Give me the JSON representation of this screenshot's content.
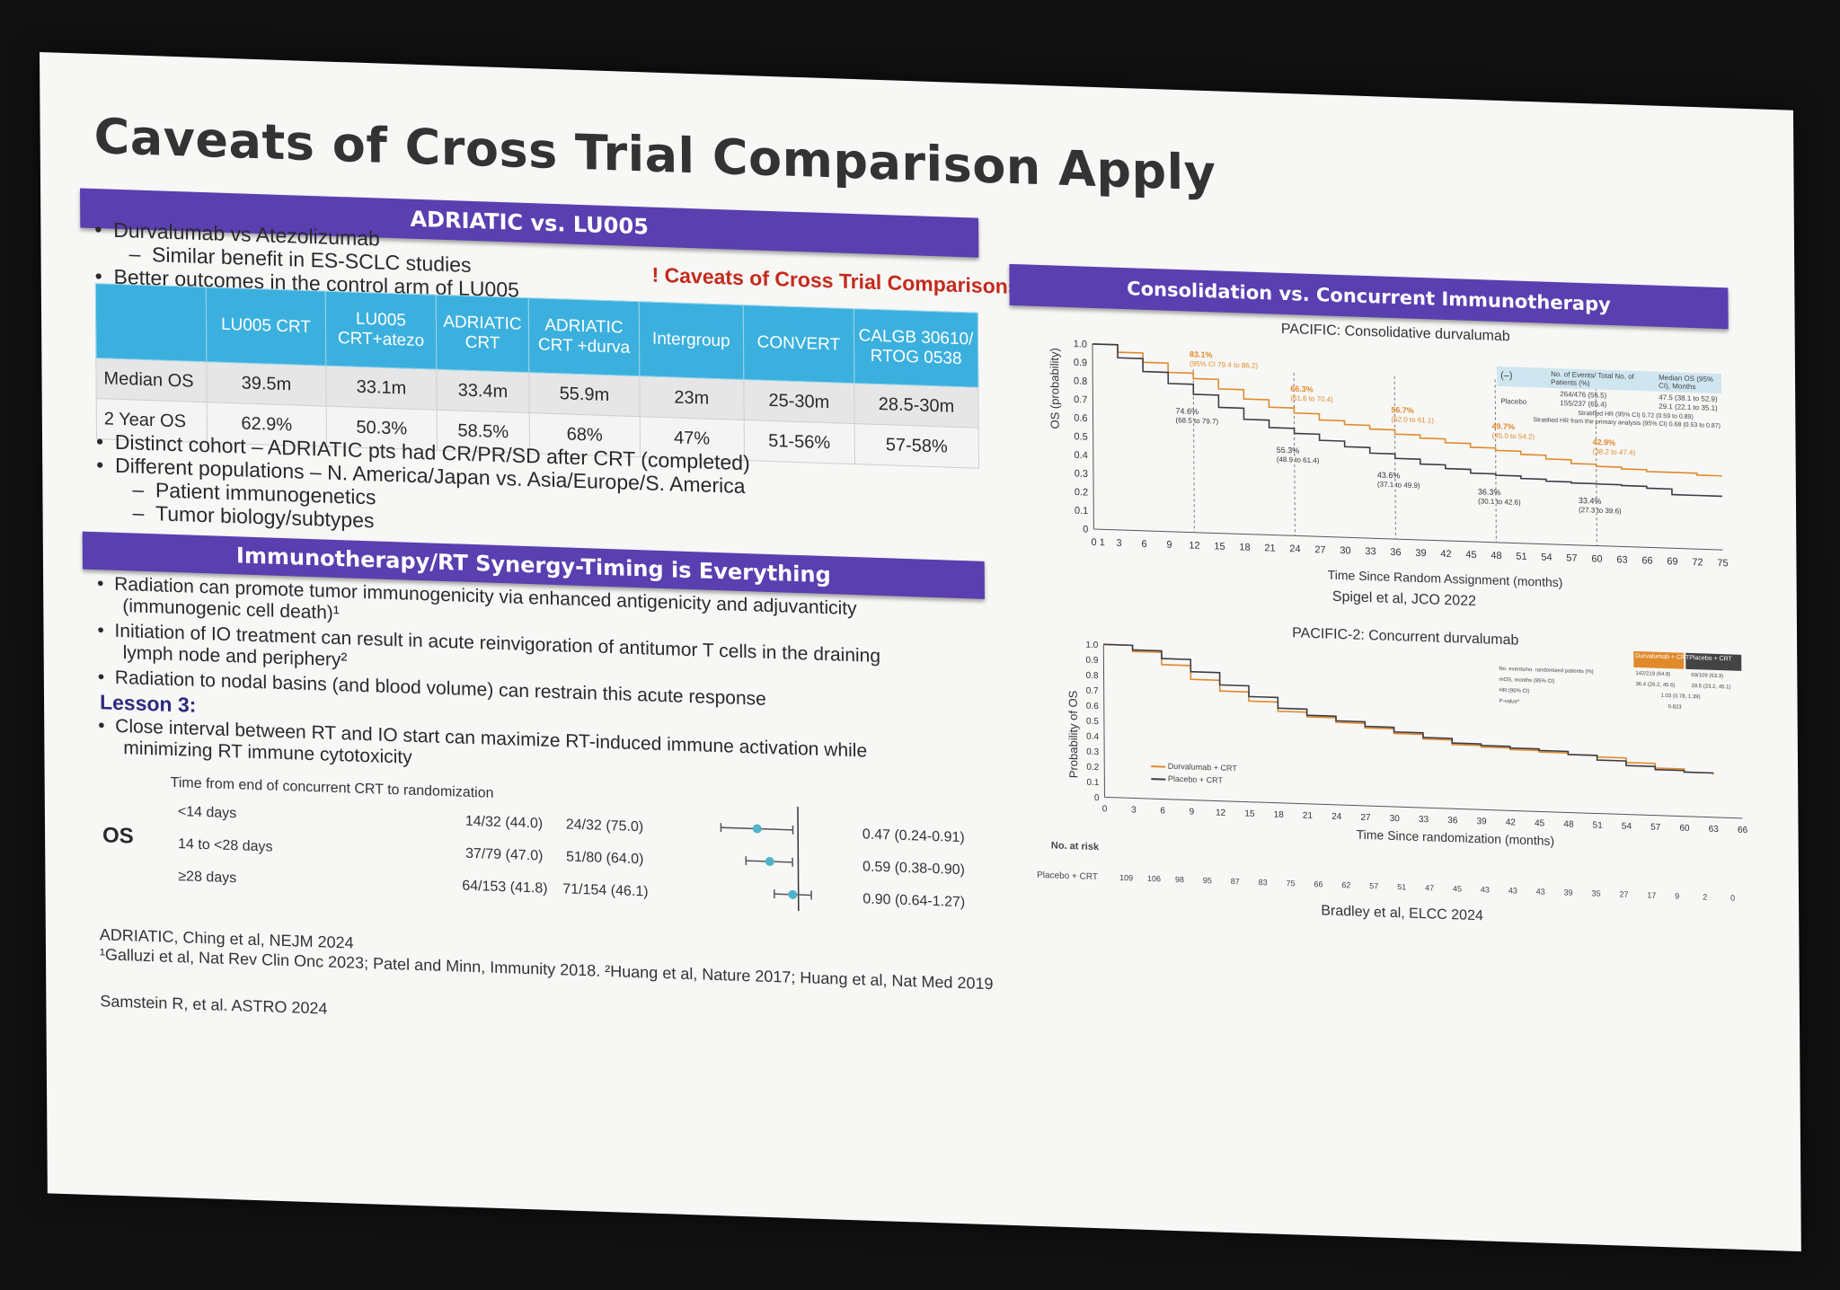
{
  "slide": {
    "title": "Caveats of Cross Trial Comparison Apply",
    "left_bar": "ADRIATIC vs. LU005",
    "bullets1": [
      "Durvalumab vs Atezolizumab",
      "Similar benefit in ES-SCLC studies",
      "Better outcomes in the control arm of LU005"
    ],
    "caveat_note": "! Caveats of Cross Trial Comparisons !",
    "table": {
      "headers": [
        "",
        "LU005 CRT",
        "LU005 CRT+atezo",
        "ADRIATIC CRT",
        "ADRIATIC CRT +durva",
        "Intergroup",
        "CONVERT",
        "CALGB 30610/ RTOG 0538"
      ],
      "rows": [
        [
          "Median OS",
          "39.5m",
          "33.1m",
          "33.4m",
          "55.9m",
          "23m",
          "25-30m",
          "28.5-30m"
        ],
        [
          "2 Year OS",
          "62.9%",
          "50.3%",
          "58.5%",
          "68%",
          "47%",
          "51-56%",
          "57-58%"
        ]
      ]
    },
    "bullets2": [
      "Distinct cohort – ADRIATIC pts had CR/PR/SD after CRT (completed)",
      "Different populations – N. America/Japan vs. Asia/Europe/S. America",
      "Patient immunogenetics",
      "Tumor biology/subtypes"
    ],
    "synergy_bar": "Immunotherapy/RT Synergy-Timing is Everything",
    "bullets3": [
      "Radiation can promote tumor immunogenicity via enhanced antigenicity and adjuvanticity",
      "(immunogenic cell death)¹",
      "Initiation of IO treatment can result in acute reinvigoration of antitumor T cells in the draining",
      "lymph node and periphery²",
      "Radiation to nodal basins (and blood volume) can restrain this acute response"
    ],
    "lesson": "Lesson 3:",
    "bullets4": [
      "Close interval between RT and IO start can maximize RT-induced immune activation while",
      "minimizing RT immune cytotoxicity"
    ],
    "forest": {
      "header": "Time from end of concurrent CRT to randomization",
      "label": "OS",
      "rows": [
        {
          "group": "<14 days",
          "a": "14/32 (44.0)",
          "b": "24/32 (75.0)",
          "hr": "0.47 (0.24-0.91)",
          "est": 0.47,
          "lo": 0.24,
          "hi": 0.91
        },
        {
          "group": "14 to <28 days",
          "a": "37/79 (47.0)",
          "b": "51/80 (64.0)",
          "hr": "0.59 (0.38-0.90)",
          "est": 0.59,
          "lo": 0.38,
          "hi": 0.9
        },
        {
          "group": "≥28 days",
          "a": "64/153 (41.8)",
          "b": "71/154 (46.1)",
          "hr": "0.90 (0.64-1.27)",
          "est": 0.9,
          "lo": 0.64,
          "hi": 1.27
        }
      ]
    },
    "refs": [
      "ADRIATIC, Ching et al, NEJM 2024",
      "¹Galluzi et al, Nat Rev Clin Onc 2023; Patel and Minn, Immunity 2018. ²Huang et al, Nature 2017; Huang et al, Nat Med 2019",
      "Samstein R,  et al.  ASTRO 2024"
    ],
    "right_bar": "Consolidation vs. Concurrent Immunotherapy",
    "pacific": {
      "subtitle": "PACIFIC: Consolidative durvalumab",
      "ylabel": "OS (probability)",
      "xlabel": "Time Since Random Assignment (months)",
      "cite": "Spigel et al, JCO 2022",
      "y_ticks": [
        "0",
        "0.1",
        "0.2",
        "0.3",
        "0.4",
        "0.5",
        "0.6",
        "0.7",
        "0.8",
        "0.9",
        "1.0"
      ],
      "x_ticks": [
        "0",
        "1",
        "3",
        "6",
        "9",
        "12",
        "15",
        "18",
        "21",
        "24",
        "27",
        "30",
        "33",
        "36",
        "39",
        "42",
        "45",
        "48",
        "51",
        "54",
        "57",
        "60",
        "63",
        "66",
        "69",
        "72",
        "75"
      ],
      "annotations_durva": [
        {
          "x": 12,
          "y": 0.831,
          "text": "83.1%",
          "sub": "(95% CI 79.4 to 86.2)"
        },
        {
          "x": 24,
          "y": 0.663,
          "text": "66.3%",
          "sub": "(61.6 to 70.4)"
        },
        {
          "x": 36,
          "y": 0.567,
          "text": "56.7%",
          "sub": "(52.0 to 61.1)"
        },
        {
          "x": 48,
          "y": 0.497,
          "text": "49.7%",
          "sub": "(45.0 to 54.2)"
        },
        {
          "x": 60,
          "y": 0.429,
          "text": "42.9%",
          "sub": "(38.2 to 47.4)"
        }
      ],
      "annotations_placebo": [
        {
          "x": 12,
          "y": 0.746,
          "text": "74.6%",
          "sub": "(68.5 to 79.7)"
        },
        {
          "x": 24,
          "y": 0.553,
          "text": "55.3%",
          "sub": "(48.9 to 61.4)"
        },
        {
          "x": 36,
          "y": 0.436,
          "text": "43.6%",
          "sub": "(37.1 to 49.9)"
        },
        {
          "x": 48,
          "y": 0.363,
          "text": "36.3%",
          "sub": "(30.1 to 42.6)"
        },
        {
          "x": 60,
          "y": 0.334,
          "text": "33.4%",
          "sub": "(27.3 to 39.6)"
        }
      ],
      "legend_box": {
        "c1": "(–)",
        "c2": "No. of Events/ Total No. of Patients (%)",
        "c3": "Median OS (95% CI), Months",
        "r1a": "264/476 (55.5)",
        "r1b": "47.5 (38.1 to 52.9)",
        "r2": "Placebo",
        "r2a": "155/237 (65.4)",
        "r2b": "29.1 (22.1 to 35.1)",
        "hr": "Stratified HR (95% CI) 0.72 (0.59 to 0.89)",
        "hr2": "Stratified HR from the primary analysis (95% CI) 0.68 (0.53 to 0.87)"
      }
    },
    "pacific2": {
      "subtitle": "PACIFIC-2: Concurrent durvalumab",
      "ylabel": "Probability of OS",
      "xlabel": "Time Since randomization (months)",
      "cite": "Bradley et al, ELCC 2024",
      "y_ticks": [
        "0",
        "0.1",
        "0.2",
        "0.3",
        "0.4",
        "0.5",
        "0.6",
        "0.7",
        "0.8",
        "0.9",
        "1.0"
      ],
      "x_ticks": [
        "0",
        "3",
        "6",
        "9",
        "12",
        "15",
        "18",
        "21",
        "24",
        "27",
        "30",
        "33",
        "36",
        "39",
        "42",
        "45",
        "48",
        "51",
        "54",
        "57",
        "60",
        "63",
        "66"
      ],
      "legend": [
        "Durvalumab + CRT",
        "Placebo + CRT"
      ],
      "table_head": [
        "Durvalumab + CRT",
        "Placebo + CRT"
      ],
      "table_rows": [
        [
          "No. events/no. randomized patients (%)",
          "142/219 (64.8)",
          "69/109 (63.3)"
        ],
        [
          "mOS, months (95% CI)",
          "36.4 (26.2, 45.6)",
          "29.5 (23.2, 45.1)"
        ],
        [
          "HR (95% CI)",
          "1.03 (0.78, 1.39)",
          ""
        ],
        [
          "P-value*",
          "0.823",
          ""
        ]
      ],
      "risk_label": "No. at risk",
      "risk_row_label": "Placebo + CRT",
      "risk_values": [
        "109",
        "106",
        "98",
        "95",
        "87",
        "83",
        "75",
        "66",
        "62",
        "57",
        "51",
        "47",
        "45",
        "43",
        "43",
        "43",
        "39",
        "35",
        "27",
        "17",
        "9",
        "2",
        "0"
      ]
    },
    "colors": {
      "purple": "#5a3fb0",
      "cyan": "#3bb0de",
      "orange": "#e08a2c",
      "dark": "#3c3c46"
    }
  },
  "chart_data": [
    {
      "type": "line",
      "title": "PACIFIC: Consolidative durvalumab",
      "xlabel": "Time Since Random Assignment (months)",
      "ylabel": "OS (probability)",
      "xlim": [
        0,
        75
      ],
      "ylim": [
        0,
        1.0
      ],
      "series": [
        {
          "x": [
            0,
            3,
            6,
            9,
            12,
            15,
            18,
            21,
            24,
            27,
            30,
            33,
            36,
            39,
            42,
            45,
            48,
            51,
            54,
            57,
            60,
            63,
            66,
            69,
            72,
            75
          ],
          "values": [
            1.0,
            0.96,
            0.91,
            0.86,
            0.831,
            0.78,
            0.73,
            0.69,
            0.663,
            0.63,
            0.61,
            0.59,
            0.567,
            0.55,
            0.53,
            0.51,
            0.497,
            0.48,
            0.46,
            0.44,
            0.429,
            0.42,
            0.41,
            0.41,
            0.4,
            0.4
          ]
        },
        {
          "x": [
            0,
            3,
            6,
            9,
            12,
            15,
            18,
            21,
            24,
            27,
            30,
            33,
            36,
            39,
            42,
            45,
            48,
            51,
            54,
            57,
            60,
            63,
            66,
            69,
            72,
            75
          ],
          "values": [
            1.0,
            0.93,
            0.86,
            0.8,
            0.746,
            0.68,
            0.62,
            0.58,
            0.553,
            0.52,
            0.49,
            0.46,
            0.436,
            0.41,
            0.39,
            0.37,
            0.363,
            0.35,
            0.34,
            0.335,
            0.334,
            0.33,
            0.32,
            0.29,
            0.29,
            0.29
          ]
        }
      ]
    },
    {
      "type": "line",
      "title": "PACIFIC-2: Concurrent durvalumab",
      "xlabel": "Time Since randomization (months)",
      "ylabel": "Probability of OS",
      "xlim": [
        0,
        66
      ],
      "ylim": [
        0,
        1.0
      ],
      "series": [
        {
          "name": "Durvalumab + CRT",
          "x": [
            0,
            3,
            6,
            9,
            12,
            15,
            18,
            21,
            24,
            27,
            30,
            33,
            36,
            39,
            42,
            45,
            48,
            51,
            54,
            57,
            60,
            63
          ],
          "values": [
            1.0,
            0.96,
            0.88,
            0.79,
            0.72,
            0.66,
            0.6,
            0.57,
            0.54,
            0.51,
            0.48,
            0.45,
            0.42,
            0.41,
            0.4,
            0.39,
            0.38,
            0.37,
            0.34,
            0.31,
            0.29,
            0.28
          ]
        },
        {
          "name": "Placebo + CRT",
          "x": [
            0,
            3,
            6,
            9,
            12,
            15,
            18,
            21,
            24,
            27,
            30,
            33,
            36,
            39,
            42,
            45,
            48,
            51,
            54,
            57,
            60,
            63
          ],
          "values": [
            1.0,
            0.97,
            0.92,
            0.84,
            0.76,
            0.69,
            0.62,
            0.58,
            0.55,
            0.52,
            0.49,
            0.46,
            0.43,
            0.42,
            0.41,
            0.4,
            0.38,
            0.35,
            0.32,
            0.3,
            0.29,
            0.29
          ]
        }
      ]
    },
    {
      "type": "scatter",
      "title": "Time from end of concurrent CRT to randomization",
      "categories": [
        "<14 days",
        "14 to <28 days",
        "≥28 days"
      ],
      "values": [
        0.47,
        0.59,
        0.9
      ],
      "lower": [
        0.24,
        0.38,
        0.64
      ],
      "upper": [
        0.91,
        0.9,
        1.27
      ]
    }
  ]
}
